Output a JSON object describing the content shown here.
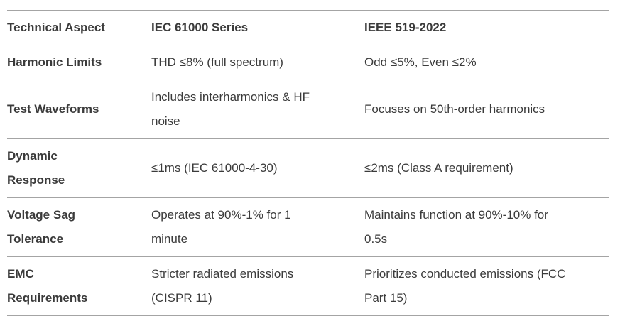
{
  "table": {
    "columns": [
      {
        "label": "Technical Aspect"
      },
      {
        "label": "IEC 61000 Series"
      },
      {
        "label": "IEEE 519-2022"
      }
    ],
    "rows": [
      {
        "aspect": "Harmonic Limits",
        "iec": "THD ≤8% (full spectrum)",
        "ieee": "Odd ≤5%, Even ≤2%"
      },
      {
        "aspect": "Test Waveforms",
        "iec": "Includes interharmonics & HF\nnoise",
        "ieee": "Focuses on 50th-order harmonics"
      },
      {
        "aspect": "Dynamic\nResponse",
        "iec": "≤1ms (IEC 61000-4-30)",
        "ieee": "≤2ms (Class A requirement)"
      },
      {
        "aspect": "Voltage Sag\nTolerance",
        "iec": "Operates at 90%-1% for 1\nminute",
        "ieee": "Maintains function at 90%-10% for\n0.5s"
      },
      {
        "aspect": "EMC\nRequirements",
        "iec": "Stricter radiated emissions\n(CISPR 11)",
        "ieee": "Prioritizes conducted emissions (FCC\nPart 15)"
      }
    ],
    "colors": {
      "text": "#3b3b3b",
      "border": "#a4a4a4",
      "background": "#ffffff"
    }
  }
}
